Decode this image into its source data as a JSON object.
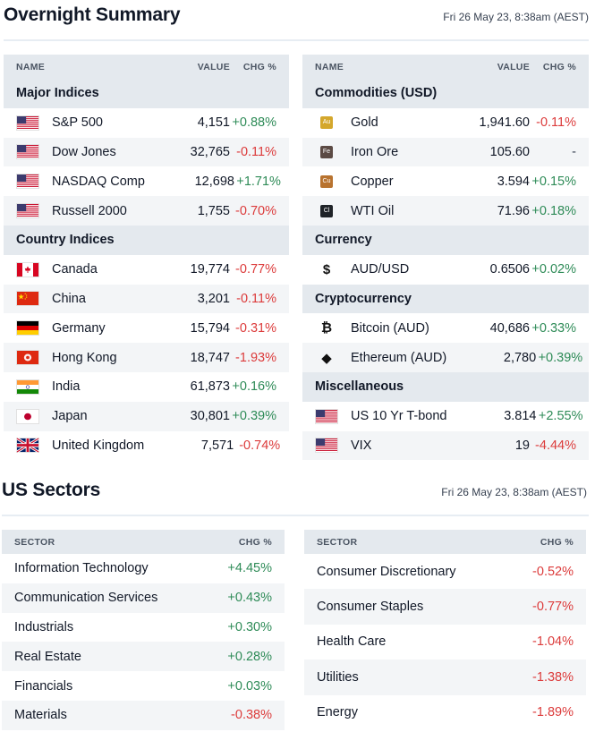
{
  "overnight": {
    "title": "Overnight Summary",
    "timestamp": "Fri 26 May 23, 8:38am (AEST)",
    "left": {
      "headers": {
        "name": "NAME",
        "value": "VALUE",
        "chg": "CHG %"
      },
      "groups": [
        {
          "label": "Major Indices",
          "rows": [
            {
              "name": "S&P 500",
              "value": "4,151",
              "chg": "+0.88%",
              "dir": "pos",
              "icon": "us-flag-icon"
            },
            {
              "name": "Dow Jones",
              "value": "32,765",
              "chg": "-0.11%",
              "dir": "neg",
              "icon": "us-flag-icon"
            },
            {
              "name": "NASDAQ Comp",
              "value": "12,698",
              "chg": "+1.71%",
              "dir": "pos",
              "icon": "us-flag-icon"
            },
            {
              "name": "Russell 2000",
              "value": "1,755",
              "chg": "-0.70%",
              "dir": "neg",
              "icon": "us-flag-icon"
            }
          ]
        },
        {
          "label": "Country Indices",
          "rows": [
            {
              "name": "Canada",
              "value": "19,774",
              "chg": "-0.77%",
              "dir": "neg",
              "icon": "canada-flag-icon"
            },
            {
              "name": "China",
              "value": "3,201",
              "chg": "-0.11%",
              "dir": "neg",
              "icon": "china-flag-icon"
            },
            {
              "name": "Germany",
              "value": "15,794",
              "chg": "-0.31%",
              "dir": "neg",
              "icon": "germany-flag-icon"
            },
            {
              "name": "Hong Kong",
              "value": "18,747",
              "chg": "-1.93%",
              "dir": "neg",
              "icon": "hong-kong-flag-icon"
            },
            {
              "name": "India",
              "value": "61,873",
              "chg": "+0.16%",
              "dir": "pos",
              "icon": "india-flag-icon"
            },
            {
              "name": "Japan",
              "value": "30,801",
              "chg": "+0.39%",
              "dir": "pos",
              "icon": "japan-flag-icon"
            },
            {
              "name": "United Kingdom",
              "value": "7,571",
              "chg": "-0.74%",
              "dir": "neg",
              "icon": "uk-flag-icon"
            }
          ]
        }
      ]
    },
    "right": {
      "headers": {
        "name": "NAME",
        "value": "VALUE",
        "chg": "CHG %"
      },
      "groups": [
        {
          "label": "Commodities (USD)",
          "rows": [
            {
              "name": "Gold",
              "value": "1,941.60",
              "chg": "-0.11%",
              "dir": "neg",
              "icon": "gold-chip-icon",
              "chip": "Au",
              "chip_color": "#d4a72c"
            },
            {
              "name": "Iron Ore",
              "value": "105.60",
              "chg": "-",
              "dir": "flat",
              "icon": "iron-ore-chip-icon",
              "chip": "Fe",
              "chip_color": "#5b4a44"
            },
            {
              "name": "Copper",
              "value": "3.594",
              "chg": "+0.15%",
              "dir": "pos",
              "icon": "copper-chip-icon",
              "chip": "Cu",
              "chip_color": "#b8732f"
            },
            {
              "name": "WTI Oil",
              "value": "71.96",
              "chg": "+0.18%",
              "dir": "pos",
              "icon": "oil-chip-icon",
              "chip": "Cl",
              "chip_color": "#1f2328"
            }
          ]
        },
        {
          "label": "Currency",
          "rows": [
            {
              "name": "AUD/USD",
              "value": "0.6506",
              "chg": "+0.02%",
              "dir": "pos",
              "icon": "dollar-icon",
              "symbol": "$"
            }
          ]
        },
        {
          "label": "Cryptocurrency",
          "rows": [
            {
              "name": "Bitcoin (AUD)",
              "value": "40,686",
              "chg": "+0.33%",
              "dir": "pos",
              "icon": "bitcoin-icon",
              "symbol": "₿"
            },
            {
              "name": "Ethereum (AUD)",
              "value": "2,780",
              "chg": "+0.39%",
              "dir": "pos",
              "icon": "ethereum-icon",
              "symbol": "◆"
            }
          ]
        },
        {
          "label": "Miscellaneous",
          "rows": [
            {
              "name": "US 10 Yr T-bond",
              "value": "3.814",
              "chg": "+2.55%",
              "dir": "pos",
              "icon": "us-flag-icon"
            },
            {
              "name": "VIX",
              "value": "19",
              "chg": "-4.44%",
              "dir": "neg",
              "icon": "us-flag-icon"
            }
          ]
        }
      ]
    }
  },
  "sectors": {
    "title": "US Sectors",
    "timestamp": "Fri 26 May 23, 8:38am (AEST)",
    "headers": {
      "sector": "SECTOR",
      "chg": "CHG %"
    },
    "left": [
      {
        "name": "Information Technology",
        "chg": "+4.45%",
        "dir": "pos"
      },
      {
        "name": "Communication Services",
        "chg": "+0.43%",
        "dir": "pos"
      },
      {
        "name": "Industrials",
        "chg": "+0.30%",
        "dir": "pos"
      },
      {
        "name": "Real Estate",
        "chg": "+0.28%",
        "dir": "pos"
      },
      {
        "name": "Financials",
        "chg": "+0.03%",
        "dir": "pos"
      },
      {
        "name": "Materials",
        "chg": "-0.38%",
        "dir": "neg"
      }
    ],
    "right": [
      {
        "name": "Consumer Discretionary",
        "chg": "-0.52%",
        "dir": "neg"
      },
      {
        "name": "Consumer Staples",
        "chg": "-0.77%",
        "dir": "neg"
      },
      {
        "name": "Health Care",
        "chg": "-1.04%",
        "dir": "neg"
      },
      {
        "name": "Utilities",
        "chg": "-1.38%",
        "dir": "neg"
      },
      {
        "name": "Energy",
        "chg": "-1.89%",
        "dir": "neg"
      }
    ]
  },
  "colors": {
    "positive": "#2e8b57",
    "negative": "#dc3b3b",
    "header_bg": "#e4e9ee",
    "row_alt": "#f3f5f7"
  }
}
